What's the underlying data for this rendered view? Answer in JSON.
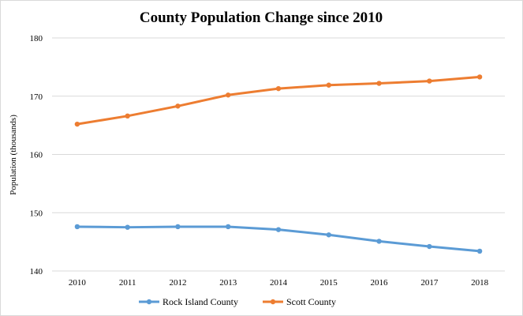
{
  "chart_data": {
    "type": "line",
    "title": "County Population Change since 2010",
    "xlabel": "",
    "ylabel": "Population (thousands)",
    "categories": [
      "2010",
      "2011",
      "2012",
      "2013",
      "2014",
      "2015",
      "2016",
      "2017",
      "2018"
    ],
    "ylim": [
      140,
      180
    ],
    "yticks": [
      "140",
      "150",
      "160",
      "170",
      "180"
    ],
    "grid": true,
    "legend_position": "bottom",
    "series": [
      {
        "name": "Rock Island County",
        "color": "#5b9bd5",
        "values": [
          147.6,
          147.5,
          147.6,
          147.6,
          147.1,
          146.2,
          145.1,
          144.2,
          143.4
        ]
      },
      {
        "name": "Scott County",
        "color": "#ed7d31",
        "values": [
          165.2,
          166.6,
          168.3,
          170.2,
          171.3,
          171.9,
          172.2,
          172.6,
          173.3
        ]
      }
    ]
  }
}
